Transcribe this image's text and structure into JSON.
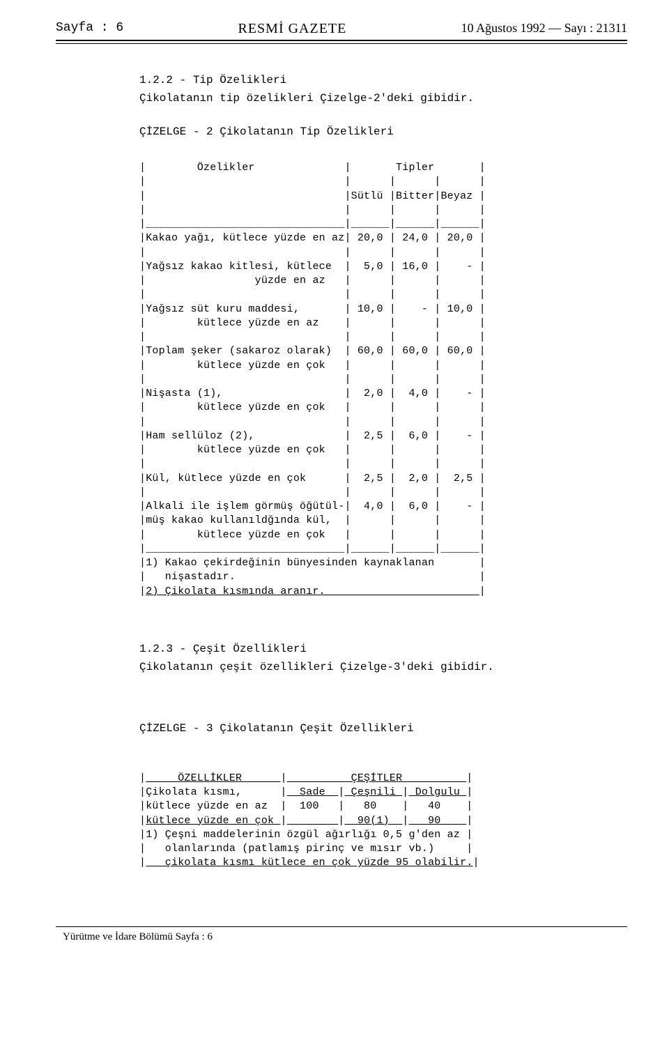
{
  "header": {
    "page_label": "Sayfa : 6",
    "title": "RESMİ GAZETE",
    "issue": "10 Ağustos 1992 — Sayı : 21311"
  },
  "section_1_2_2": {
    "heading": "1.2.2 - Tip Özelikleri",
    "subtext": "Çikolatanın tip özelikleri Çizelge-2'deki gibidir.",
    "table_caption": "ÇİZELGE - 2  Çikolatanın Tip Özelikleri",
    "table": {
      "header_row1_left": "Özelikler",
      "header_row1_right": "Tipler",
      "subheaders": [
        "Sütlü",
        "Bitter",
        "Beyaz"
      ],
      "rows": [
        {
          "label": "Kakao yağı, kütlece yüzde en az",
          "sutlu": "20,0",
          "bitter": "24,0",
          "beyaz": "20,0"
        },
        {
          "label": "Yağsız kakao kitlesi, kütlece\n                 yüzde en az",
          "sutlu": "5,0",
          "bitter": "16,0",
          "beyaz": "-"
        },
        {
          "label": "Yağsız süt kuru maddesi,\n        kütlece yüzde en az",
          "sutlu": "10,0",
          "bitter": "-",
          "beyaz": "10,0"
        },
        {
          "label": "Toplam şeker (sakaroz olarak)\n        kütlece yüzde en çok",
          "sutlu": "60,0",
          "bitter": "60,0",
          "beyaz": "60,0"
        },
        {
          "label": "Nişasta (1),\n        kütlece yüzde en çok",
          "sutlu": "2,0",
          "bitter": "4,0",
          "beyaz": "-"
        },
        {
          "label": "Ham sellüloz (2),\n        kütlece yüzde en çok",
          "sutlu": "2,5",
          "bitter": "6,0",
          "beyaz": "-"
        },
        {
          "label": "Kül, kütlece yüzde en çok",
          "sutlu": "2,5",
          "bitter": "2,0",
          "beyaz": "2,5"
        },
        {
          "label": "Alkali ile işlem görmüş öğütül-\nmüş kakao kullanıldğında kül,\n        kütlece yüzde en çok",
          "sutlu": "4,0",
          "bitter": "6,0",
          "beyaz": "-"
        }
      ],
      "footnote_1": "1) Kakao çekirdeğinin bünyesinden kaynaklanan\n   nişastadır.",
      "footnote_2": "2) Çikolata kısmında aranır."
    }
  },
  "section_1_2_3": {
    "heading": "1.2.3 - Çeşit Özellikleri",
    "subtext": "Çikolatanın çeşit özellikleri Çizelge-3'deki gibidir.",
    "table_caption": "ÇİZELGE - 3  Çikolatanın Çeşit Özellikleri",
    "table": {
      "header_left": "ÖZELLİKLER",
      "header_right": "ÇEŞİTLER",
      "row1_label": "Çikolata kısmı,",
      "row1_cols": [
        "Sade",
        "Çeşnili",
        "Dolgulu"
      ],
      "row2_label": "kütlece yüzde en az",
      "row2_vals": [
        "100",
        "80",
        "40"
      ],
      "row3_label": "kütlece yüzde en çok",
      "row3_vals": [
        "",
        "90(1)",
        "90"
      ],
      "footnote": "1) Çeşni maddelerinin özgül ağırlığı 0,5 g'den az\n   olanlarında (patlamış pirinç ve mısır vb.)\n   çikolata kısmı kütlece en çok yüzde 95 olabilir."
    }
  },
  "footer": {
    "text": "Yürütme ve İdare Bölümü Sayfa : 6"
  }
}
